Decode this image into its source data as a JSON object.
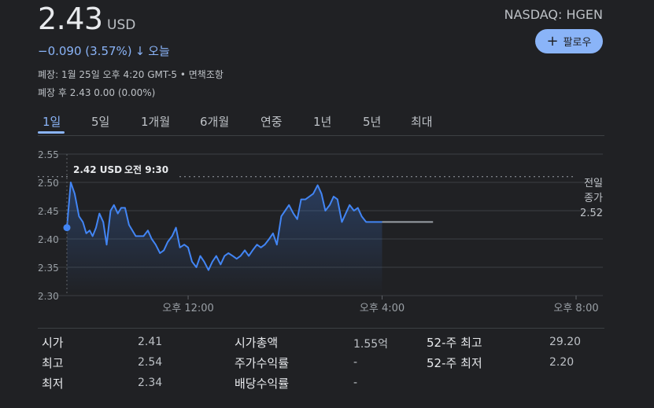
{
  "quote": {
    "price": "2.43",
    "currency": "USD",
    "change": "−0.090 (3.57%)",
    "change_arrow": "↓",
    "period_label": "오늘",
    "close_info": "폐장: 1월 25일 오후 4:20 GMT-5 • 면책조항",
    "after_hours": "폐장 후 2.43 0.00 (0.00%)",
    "ticker": "NASDAQ: HGEN"
  },
  "follow_button": {
    "icon": "plus-icon",
    "label": "팔로우"
  },
  "tabs": [
    {
      "label": "1일",
      "active": true
    },
    {
      "label": "5일",
      "active": false
    },
    {
      "label": "1개월",
      "active": false
    },
    {
      "label": "6개월",
      "active": false
    },
    {
      "label": "연중",
      "active": false
    },
    {
      "label": "1년",
      "active": false
    },
    {
      "label": "5년",
      "active": false
    },
    {
      "label": "최대",
      "active": false
    }
  ],
  "chart_data": {
    "type": "line",
    "y_ticks": [
      "2.55",
      "2.50",
      "2.45",
      "2.40",
      "2.35",
      "2.30"
    ],
    "ylim": [
      2.3,
      2.55
    ],
    "x_ticks": [
      "오후 12:00",
      "오후 4:00",
      "오후 8:00"
    ],
    "x_range_hours": [
      9.5,
      20.0
    ],
    "previous_close_label": [
      "전일",
      "종가",
      "2.52"
    ],
    "previous_close": 2.52,
    "tooltip": {
      "price": "2.42 USD",
      "time": "오전 9:30"
    },
    "line_color": "#4285f4",
    "series": [
      {
        "x": [
          9.5,
          9.58,
          9.66,
          9.75,
          9.83,
          9.9,
          9.97,
          10.03,
          10.1,
          10.17,
          10.25,
          10.32,
          10.4,
          10.47,
          10.55,
          10.62,
          10.7,
          10.78,
          10.85,
          10.92,
          11.0,
          11.08,
          11.17,
          11.25,
          11.33,
          11.42,
          11.5,
          11.58,
          11.67,
          11.75,
          11.83,
          11.92,
          12.0,
          12.08,
          12.17,
          12.25,
          12.33,
          12.42,
          12.5,
          12.58,
          12.67,
          12.75,
          12.83,
          12.92,
          13.0,
          13.08,
          13.17,
          13.25,
          13.33,
          13.42,
          13.5,
          13.58,
          13.67,
          13.75,
          13.83,
          13.92,
          14.0,
          14.08,
          14.17,
          14.25,
          14.33,
          14.42,
          14.5,
          14.58,
          14.67,
          14.75,
          14.83,
          14.92,
          15.0,
          15.08,
          15.17,
          15.25,
          15.33,
          15.42,
          15.5,
          15.58,
          15.67,
          15.75,
          15.83,
          15.92,
          16.0
        ],
        "values": [
          2.42,
          2.5,
          2.48,
          2.44,
          2.43,
          2.41,
          2.415,
          2.405,
          2.42,
          2.445,
          2.43,
          2.39,
          2.45,
          2.46,
          2.445,
          2.455,
          2.455,
          2.425,
          2.415,
          2.405,
          2.405,
          2.405,
          2.415,
          2.4,
          2.39,
          2.375,
          2.38,
          2.395,
          2.405,
          2.42,
          2.385,
          2.39,
          2.385,
          2.36,
          2.35,
          2.37,
          2.36,
          2.345,
          2.36,
          2.37,
          2.355,
          2.37,
          2.375,
          2.37,
          2.365,
          2.37,
          2.38,
          2.37,
          2.38,
          2.39,
          2.385,
          2.39,
          2.4,
          2.41,
          2.39,
          2.44,
          2.45,
          2.46,
          2.445,
          2.435,
          2.47,
          2.47,
          2.475,
          2.48,
          2.495,
          2.48,
          2.45,
          2.46,
          2.475,
          2.47,
          2.43,
          2.445,
          2.46,
          2.45,
          2.455,
          2.44,
          2.43,
          2.43,
          2.43,
          2.43,
          2.43
        ]
      }
    ],
    "after_hours": {
      "x": [
        16.0,
        17.05
      ],
      "values": [
        2.43,
        2.43
      ]
    }
  },
  "stats": {
    "col1": [
      {
        "label": "시가",
        "value": "2.41"
      },
      {
        "label": "최고",
        "value": "2.54"
      },
      {
        "label": "최저",
        "value": "2.34"
      }
    ],
    "col2": [
      {
        "label": "시가총액",
        "value": "1.55억"
      },
      {
        "label": "주가수익률",
        "value": "-"
      },
      {
        "label": "배당수익률",
        "value": "-"
      }
    ],
    "col3": [
      {
        "label": "52-주 최고",
        "value": "29.20"
      },
      {
        "label": "52-주 최저",
        "value": "2.20"
      }
    ]
  }
}
